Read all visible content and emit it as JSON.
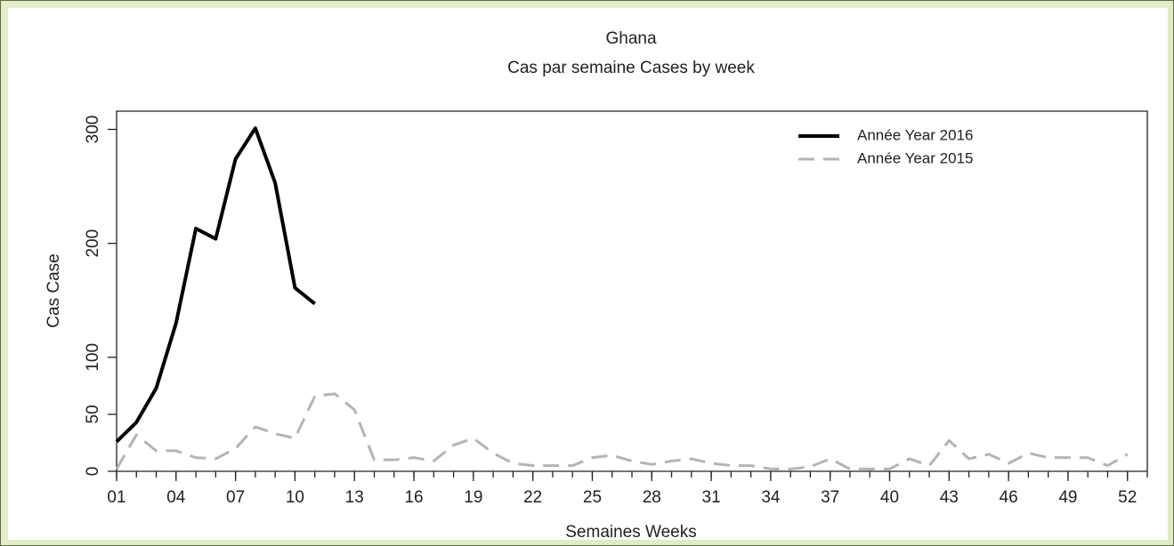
{
  "chart_data": {
    "type": "line",
    "title": "Ghana",
    "subtitle": "Cas par semaine Cases by week",
    "x_label": "Semaines Weeks",
    "y_label": "Cas Case",
    "x": [
      1,
      2,
      3,
      4,
      5,
      6,
      7,
      8,
      9,
      10,
      11,
      12,
      13,
      14,
      15,
      16,
      17,
      18,
      19,
      20,
      21,
      22,
      23,
      24,
      25,
      26,
      27,
      28,
      29,
      30,
      31,
      32,
      33,
      34,
      35,
      36,
      37,
      38,
      39,
      40,
      41,
      42,
      43,
      44,
      45,
      46,
      47,
      48,
      49,
      50,
      51,
      52
    ],
    "series": [
      {
        "name": "Année Year 2016",
        "color": "#000000",
        "dash": "solid",
        "values": [
          26,
          43,
          73,
          130,
          213,
          204,
          274,
          301,
          253,
          161,
          147,
          null,
          null,
          null,
          null,
          null,
          null,
          null,
          null,
          null,
          null,
          null,
          null,
          null,
          null,
          null,
          null,
          null,
          null,
          null,
          null,
          null,
          null,
          null,
          null,
          null,
          null,
          null,
          null,
          null,
          null,
          null,
          null,
          null,
          null,
          null,
          null,
          null,
          null,
          null,
          null,
          null
        ]
      },
      {
        "name": "Année Year 2015",
        "color": "#b4b4b4",
        "dash": "dashed",
        "values": [
          2,
          32,
          18,
          18,
          12,
          11,
          20,
          39,
          33,
          29,
          66,
          68,
          54,
          10,
          10,
          12,
          9,
          23,
          29,
          16,
          7,
          5,
          5,
          5,
          12,
          14,
          9,
          6,
          9,
          11,
          7,
          5,
          5,
          2,
          2,
          4,
          11,
          2,
          2,
          2,
          11,
          5,
          27,
          11,
          15,
          7,
          16,
          12,
          12,
          12,
          5,
          15
        ]
      }
    ],
    "xlim": [
      1,
      53
    ],
    "ylim": [
      0,
      316
    ],
    "xticks": [
      {
        "value": 1,
        "label": "01"
      },
      {
        "value": 4,
        "label": "04"
      },
      {
        "value": 7,
        "label": "07"
      },
      10,
      13,
      16,
      19,
      22,
      25,
      28,
      31,
      34,
      37,
      40,
      43,
      46,
      49,
      52
    ],
    "yticks": [
      0,
      50,
      100,
      200,
      300
    ],
    "legend": "top-right",
    "grid": false
  }
}
